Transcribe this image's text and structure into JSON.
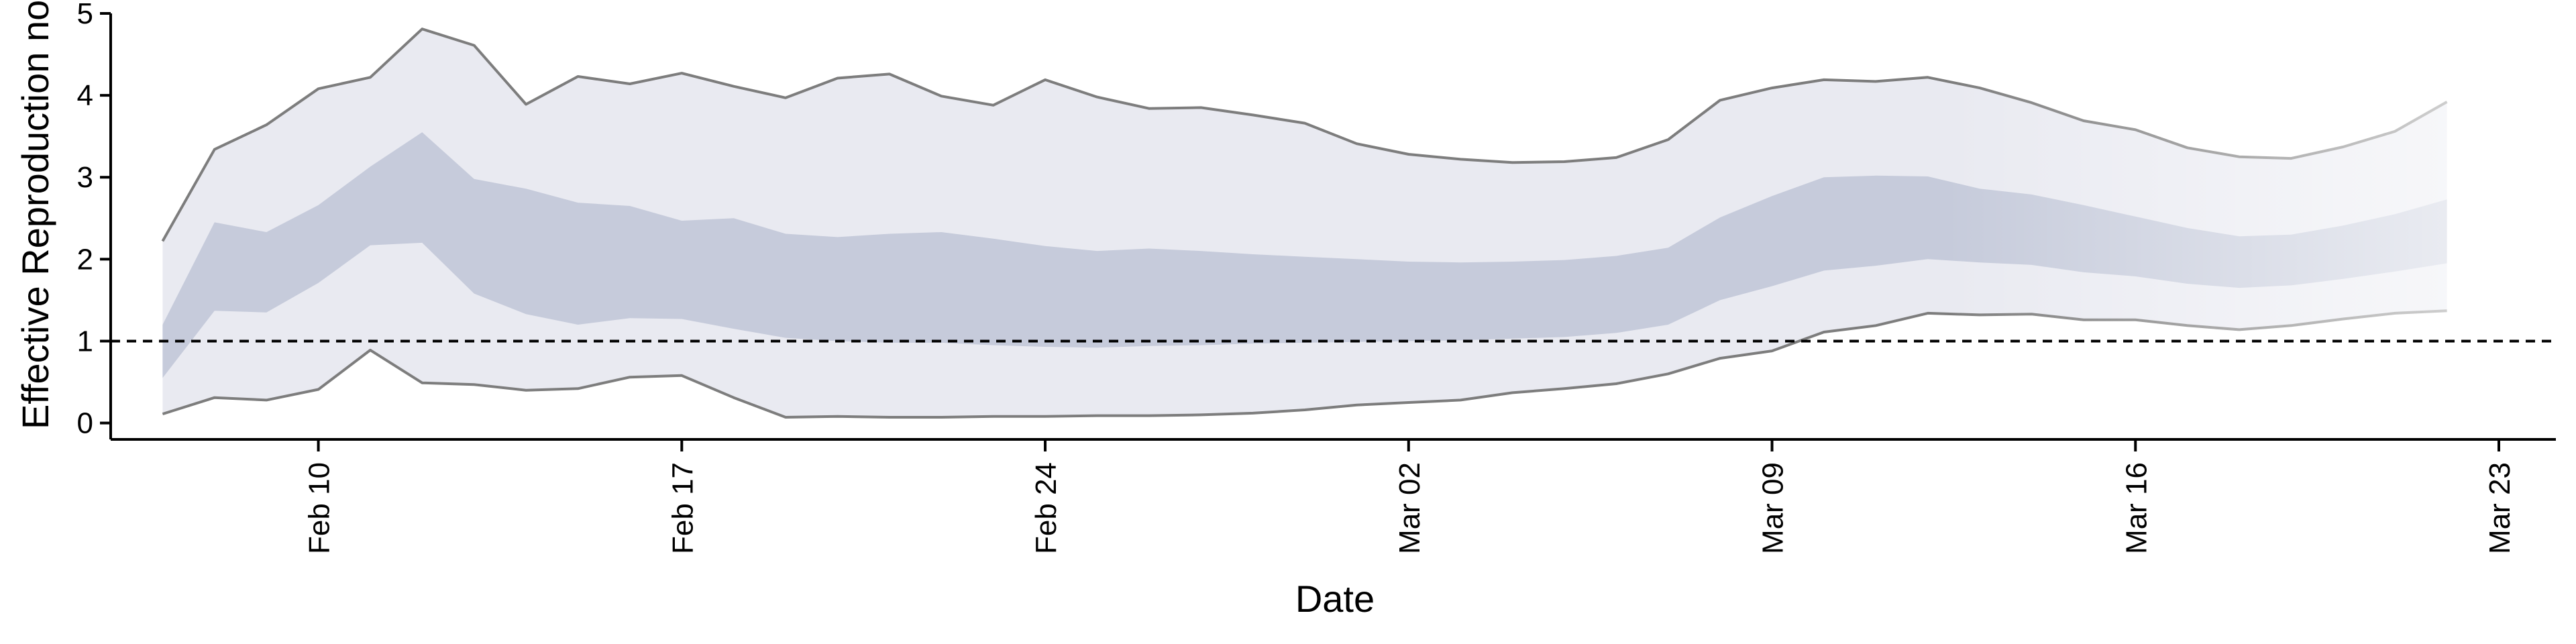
{
  "chart_data": {
    "type": "area",
    "xlabel": "Date",
    "ylabel": "Effective Reproduction no",
    "x_start": "2020-02-06",
    "x_end": "2020-03-23",
    "ylim": [
      -0.2,
      5.0
    ],
    "yticks": [
      0,
      1,
      2,
      3,
      4,
      5
    ],
    "xticks": [
      {
        "date": "2020-02-10",
        "label": "Feb 10"
      },
      {
        "date": "2020-02-17",
        "label": "Feb 17"
      },
      {
        "date": "2020-02-24",
        "label": "Feb 24"
      },
      {
        "date": "2020-03-02",
        "label": "Mar 02"
      },
      {
        "date": "2020-03-09",
        "label": "Mar 09"
      },
      {
        "date": "2020-03-16",
        "label": "Mar 16"
      },
      {
        "date": "2020-03-23",
        "label": "Mar 23"
      }
    ],
    "reference_line": {
      "y": 1,
      "style": "dashed"
    },
    "grid": false,
    "series": [
      {
        "x": [
          "2020-02-07",
          "2020-02-08",
          "2020-02-09",
          "2020-02-10",
          "2020-02-11",
          "2020-02-12",
          "2020-02-13",
          "2020-02-14",
          "2020-02-15",
          "2020-02-16",
          "2020-02-17",
          "2020-02-18",
          "2020-02-19",
          "2020-02-20",
          "2020-02-21",
          "2020-02-22",
          "2020-02-23",
          "2020-02-24",
          "2020-02-25",
          "2020-02-26",
          "2020-02-27",
          "2020-02-28",
          "2020-02-29",
          "2020-03-01",
          "2020-03-02",
          "2020-03-03",
          "2020-03-04",
          "2020-03-05",
          "2020-03-06",
          "2020-03-07",
          "2020-03-08",
          "2020-03-09",
          "2020-03-10",
          "2020-03-11",
          "2020-03-12",
          "2020-03-13",
          "2020-03-14",
          "2020-03-15",
          "2020-03-16",
          "2020-03-17",
          "2020-03-18",
          "2020-03-19",
          "2020-03-20",
          "2020-03-21",
          "2020-03-22"
        ],
        "upper_90": [
          2.22,
          3.34,
          3.64,
          4.08,
          4.22,
          4.81,
          4.61,
          3.89,
          4.23,
          4.14,
          4.27,
          4.11,
          3.97,
          4.21,
          4.26,
          3.99,
          3.88,
          4.19,
          3.98,
          3.84,
          3.85,
          3.76,
          3.66,
          3.41,
          3.28,
          3.22,
          3.18,
          3.19,
          3.24,
          3.46,
          3.94,
          4.09,
          4.19,
          4.17,
          4.22,
          4.09,
          3.91,
          3.69,
          3.58,
          3.36,
          3.25,
          3.23,
          3.37,
          3.56,
          3.92
        ],
        "upper_50": [
          1.2,
          2.45,
          2.33,
          2.66,
          3.13,
          3.55,
          2.98,
          2.86,
          2.69,
          2.65,
          2.47,
          2.5,
          2.31,
          2.27,
          2.31,
          2.33,
          2.25,
          2.16,
          2.1,
          2.13,
          2.1,
          2.06,
          2.03,
          2.0,
          1.97,
          1.96,
          1.97,
          1.99,
          2.04,
          2.14,
          2.51,
          2.77,
          3.0,
          3.02,
          3.01,
          2.86,
          2.79,
          2.66,
          2.52,
          2.38,
          2.28,
          2.3,
          2.41,
          2.55,
          2.73
        ],
        "lower_50": [
          0.55,
          1.37,
          1.35,
          1.71,
          2.17,
          2.2,
          1.58,
          1.33,
          1.2,
          1.28,
          1.27,
          1.15,
          1.04,
          1.0,
          0.98,
          0.98,
          0.95,
          0.93,
          0.92,
          0.94,
          0.95,
          0.97,
          0.98,
          0.99,
          1.0,
          1.01,
          1.03,
          1.05,
          1.1,
          1.2,
          1.5,
          1.67,
          1.86,
          1.92,
          2.0,
          1.96,
          1.93,
          1.84,
          1.79,
          1.7,
          1.65,
          1.68,
          1.76,
          1.85,
          1.95
        ],
        "lower_90": [
          0.11,
          0.31,
          0.28,
          0.41,
          0.89,
          0.49,
          0.47,
          0.4,
          0.42,
          0.56,
          0.58,
          0.31,
          0.07,
          0.08,
          0.07,
          0.07,
          0.08,
          0.08,
          0.09,
          0.09,
          0.1,
          0.12,
          0.16,
          0.22,
          0.25,
          0.28,
          0.37,
          0.42,
          0.48,
          0.6,
          0.79,
          0.88,
          1.11,
          1.19,
          1.34,
          1.32,
          1.33,
          1.26,
          1.26,
          1.19,
          1.14,
          1.19,
          1.27,
          1.34,
          1.37
        ]
      }
    ],
    "colors": {
      "outer_band": "#e9eaf1",
      "inner_band": "#c6cbdb",
      "bound_line": "#7d7d7d",
      "reference": "#000000",
      "axis": "#000000"
    }
  }
}
